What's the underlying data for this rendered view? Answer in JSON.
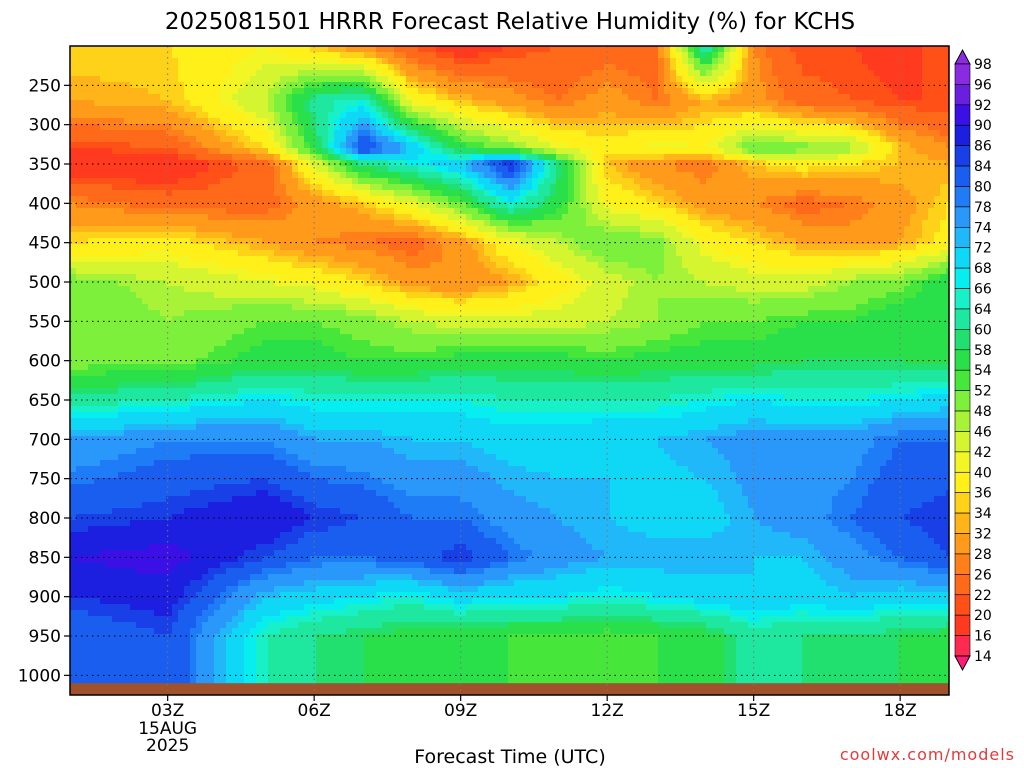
{
  "chart_data": {
    "type": "heatmap",
    "title": "2025081501 HRRR Forecast Relative Humidity (%) for KCHS",
    "xlabel": "Forecast Time (UTC)",
    "ylabel": "",
    "x_ticks": [
      {
        "hour": 3,
        "label": "03Z",
        "sub": [
          "15AUG",
          "2025"
        ]
      },
      {
        "hour": 6,
        "label": "06Z",
        "sub": []
      },
      {
        "hour": 9,
        "label": "09Z",
        "sub": []
      },
      {
        "hour": 12,
        "label": "12Z",
        "sub": []
      },
      {
        "hour": 15,
        "label": "15Z",
        "sub": []
      },
      {
        "hour": 18,
        "label": "18Z",
        "sub": []
      }
    ],
    "xlim": [
      1,
      19
    ],
    "y_ticks": [
      250,
      300,
      350,
      400,
      450,
      500,
      550,
      600,
      650,
      700,
      750,
      800,
      850,
      900,
      950,
      1000
    ],
    "ylim_hPa": [
      1025,
      200
    ],
    "grid": true,
    "colorbar_labels": [
      98,
      96,
      92,
      90,
      86,
      84,
      80,
      78,
      74,
      72,
      68,
      66,
      64,
      60,
      58,
      54,
      52,
      48,
      46,
      42,
      40,
      36,
      34,
      32,
      28,
      26,
      22,
      20,
      16,
      14
    ],
    "colorbar_colors": [
      "#8a2be2",
      "#6a1fe0",
      "#3a10e6",
      "#1d1fe0",
      "#1840e6",
      "#1a5ef0",
      "#1f7cf7",
      "#2a98fa",
      "#20b8f8",
      "#0ed8f5",
      "#06eef0",
      "#18f0c8",
      "#1ee8a0",
      "#22e070",
      "#2ae04a",
      "#46e63a",
      "#7cf03a",
      "#a8f238",
      "#d4f530",
      "#f4f524",
      "#fff01a",
      "#ffd21a",
      "#ffb41a",
      "#ff9a1a",
      "#ff801a",
      "#ff6a1a",
      "#ff5018",
      "#ff3a1e",
      "#ff2a50",
      "#ff1a78"
    ],
    "contour_levels": [
      16,
      20,
      26,
      32,
      36,
      42,
      48,
      52,
      58,
      64,
      68,
      74,
      80,
      86,
      92
    ],
    "surface_pressure_hPa": 1010,
    "profiles": [
      {
        "hour": 1,
        "rh": [
          36,
          32,
          20,
          16,
          28,
          36,
          50,
          52,
          50,
          62,
          74,
          84,
          90,
          86,
          80
        ]
      },
      {
        "hour": 3,
        "rh": [
          36,
          34,
          22,
          16,
          24,
          38,
          46,
          48,
          50,
          64,
          78,
          86,
          92,
          88,
          84
        ]
      },
      {
        "hour": 5,
        "rh": [
          40,
          46,
          36,
          24,
          24,
          32,
          42,
          52,
          56,
          68,
          78,
          90,
          84,
          72,
          64
        ]
      },
      {
        "hour": 6,
        "rh": [
          34,
          62,
          56,
          42,
          30,
          28,
          40,
          52,
          56,
          66,
          74,
          86,
          80,
          70,
          60
        ]
      },
      {
        "hour": 7,
        "rh": [
          28,
          66,
          86,
          60,
          34,
          26,
          36,
          50,
          54,
          66,
          74,
          84,
          80,
          68,
          58
        ]
      },
      {
        "hour": 8,
        "rh": [
          22,
          40,
          72,
          66,
          42,
          24,
          30,
          46,
          54,
          66,
          72,
          80,
          82,
          66,
          56
        ]
      },
      {
        "hour": 9,
        "rh": [
          16,
          34,
          56,
          72,
          52,
          30,
          28,
          44,
          56,
          66,
          72,
          80,
          86,
          70,
          56
        ]
      },
      {
        "hour": 10,
        "rh": [
          20,
          30,
          50,
          88,
          66,
          40,
          32,
          44,
          56,
          64,
          70,
          76,
          80,
          68,
          54
        ]
      },
      {
        "hour": 11,
        "rh": [
          22,
          26,
          42,
          60,
          56,
          46,
          38,
          44,
          56,
          64,
          70,
          74,
          76,
          68,
          54
        ]
      },
      {
        "hour": 12,
        "rh": [
          24,
          30,
          38,
          34,
          40,
          52,
          44,
          46,
          54,
          64,
          72,
          72,
          74,
          66,
          52
        ]
      },
      {
        "hour": 13,
        "rh": [
          24,
          26,
          42,
          28,
          36,
          50,
          48,
          48,
          56,
          64,
          72,
          70,
          74,
          68,
          54
        ]
      },
      {
        "hour": 14,
        "rh": [
          66,
          32,
          40,
          26,
          30,
          40,
          46,
          52,
          56,
          66,
          74,
          70,
          74,
          70,
          56
        ]
      },
      {
        "hour": 15,
        "rh": [
          28,
          30,
          52,
          34,
          28,
          36,
          44,
          52,
          56,
          68,
          76,
          74,
          72,
          72,
          62
        ]
      },
      {
        "hour": 16,
        "rh": [
          20,
          24,
          50,
          38,
          24,
          32,
          44,
          54,
          58,
          66,
          76,
          76,
          72,
          70,
          60
        ]
      },
      {
        "hour": 17,
        "rh": [
          20,
          22,
          48,
          36,
          26,
          30,
          48,
          54,
          58,
          66,
          76,
          80,
          76,
          72,
          60
        ]
      },
      {
        "hour": 18,
        "rh": [
          18,
          20,
          34,
          34,
          30,
          32,
          50,
          58,
          58,
          68,
          80,
          84,
          80,
          70,
          58
        ]
      },
      {
        "hour": 19,
        "rh": [
          22,
          20,
          28,
          32,
          36,
          38,
          58,
          56,
          56,
          70,
          80,
          86,
          84,
          70,
          56
        ]
      }
    ],
    "profile_pressures_hPa": [
      200,
      270,
      330,
      350,
      400,
      450,
      500,
      550,
      600,
      650,
      700,
      800,
      850,
      900,
      950
    ]
  },
  "credit": "coolwx.com/models"
}
